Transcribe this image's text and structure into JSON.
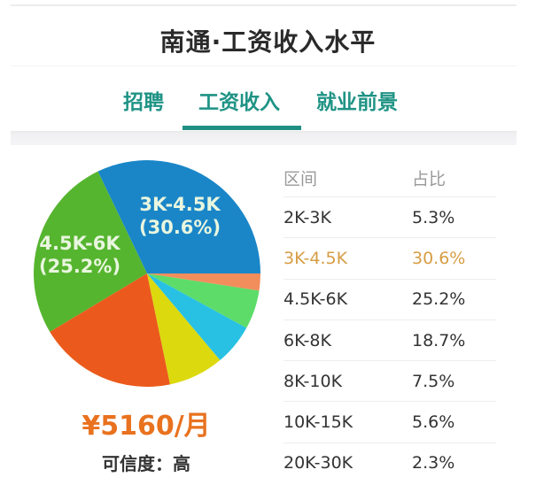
{
  "header": {
    "title": "南通·工资收入水平"
  },
  "tabs": [
    {
      "label": "招聘",
      "active": false
    },
    {
      "label": "工资收入",
      "active": true
    },
    {
      "label": "就业前景",
      "active": false
    }
  ],
  "colors": {
    "accent": "#1f9385",
    "average_salary": "#e9721f",
    "highlight_row": "#d79d45"
  },
  "summary": {
    "average_salary": "¥5160/月",
    "credibility": "可信度：高"
  },
  "pie_labels": {
    "slice_3k_45k": {
      "range": "3K-4.5K",
      "pct": "(30.6%)"
    },
    "slice_45k_6k": {
      "range": "4.5K-6K",
      "pct": "(25.2%)"
    }
  },
  "table": {
    "headers": [
      "区间",
      "占比"
    ],
    "rows": [
      {
        "range": "2K-3K",
        "share": "5.3%",
        "highlight": false
      },
      {
        "range": "3K-4.5K",
        "share": "30.6%",
        "highlight": true
      },
      {
        "range": "4.5K-6K",
        "share": "25.2%",
        "highlight": false
      },
      {
        "range": "6K-8K",
        "share": "18.7%",
        "highlight": false
      },
      {
        "range": "8K-10K",
        "share": "7.5%",
        "highlight": false
      },
      {
        "range": "10K-15K",
        "share": "5.6%",
        "highlight": false
      },
      {
        "range": "20K-30K",
        "share": "2.3%",
        "highlight": false
      }
    ]
  },
  "chart_data": {
    "type": "pie",
    "title": "南通·工资收入水平",
    "categories": [
      "2K-3K",
      "3K-4.5K",
      "4.5K-6K",
      "6K-8K",
      "8K-10K",
      "10K-15K",
      "20K-30K"
    ],
    "values": [
      5.3,
      30.6,
      25.2,
      18.7,
      7.5,
      5.6,
      2.3
    ],
    "unit": "%",
    "annotations": [
      "3K-4.5K (30.6%)",
      "4.5K-6K (25.2%)",
      "¥5160/月",
      "可信度：高"
    ],
    "legend": "table on right (区间 / 占比)",
    "render_slices": [
      {
        "name": "3K-4.5K",
        "value": 30.6,
        "color": "#1a86c8"
      },
      {
        "name": "4.5K-6K",
        "value": 25.2,
        "color": "#56b52f"
      },
      {
        "name": "6K-8K",
        "value": 18.7,
        "color": "#eb5a1c"
      },
      {
        "name": "8K-10K",
        "value": 7.5,
        "color": "#dcd90f"
      },
      {
        "name": "10K-15K",
        "value": 5.6,
        "color": "#28c1e3"
      },
      {
        "name": "2K-3K",
        "value": 5.3,
        "color": "#5ddc6a"
      },
      {
        "name": "20K-30K",
        "value": 2.3,
        "color": "#f28d5c"
      }
    ]
  }
}
